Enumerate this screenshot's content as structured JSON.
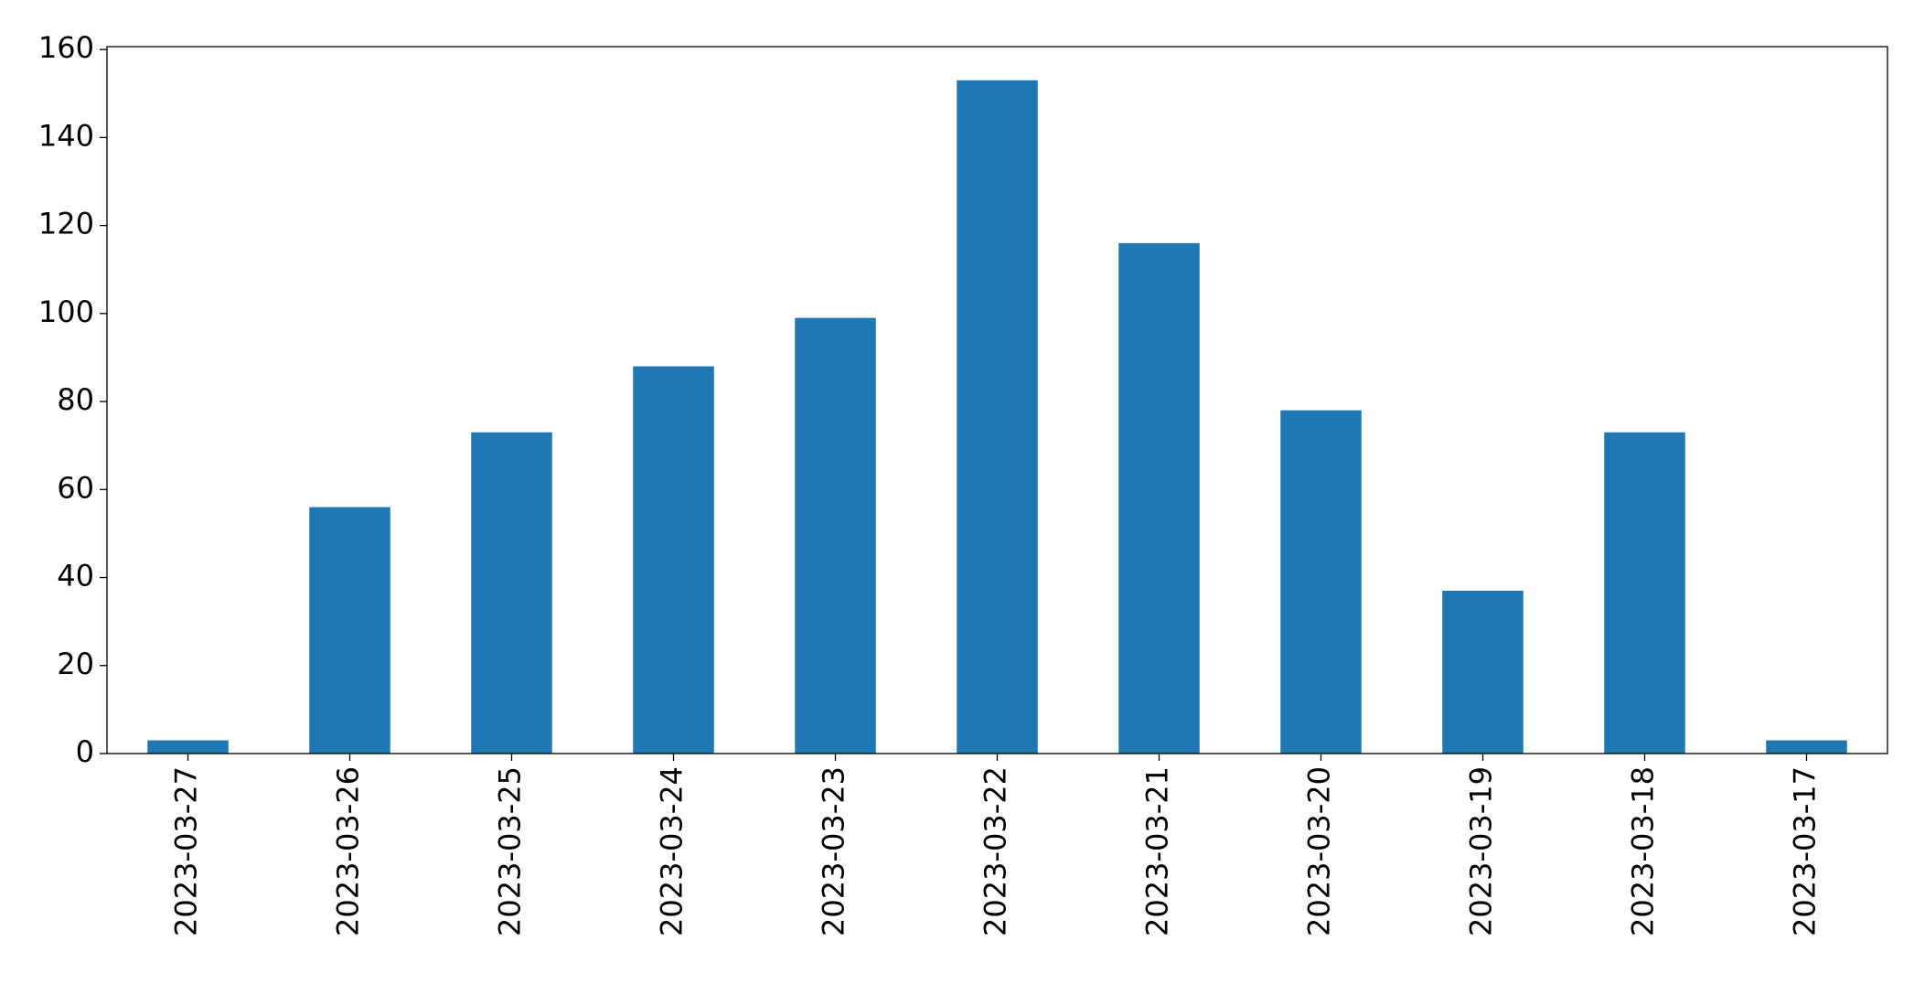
{
  "chart_data": {
    "type": "bar",
    "categories": [
      "2023-03-27",
      "2023-03-26",
      "2023-03-25",
      "2023-03-24",
      "2023-03-23",
      "2023-03-22",
      "2023-03-21",
      "2023-03-20",
      "2023-03-19",
      "2023-03-18",
      "2023-03-17"
    ],
    "values": [
      3,
      56,
      73,
      88,
      99,
      153,
      116,
      78,
      37,
      73,
      3
    ],
    "color": "#1f77b4",
    "ylim": [
      0,
      160.65
    ],
    "yticks": [
      0,
      20,
      40,
      60,
      80,
      100,
      120,
      140,
      160
    ],
    "grid": false
  }
}
